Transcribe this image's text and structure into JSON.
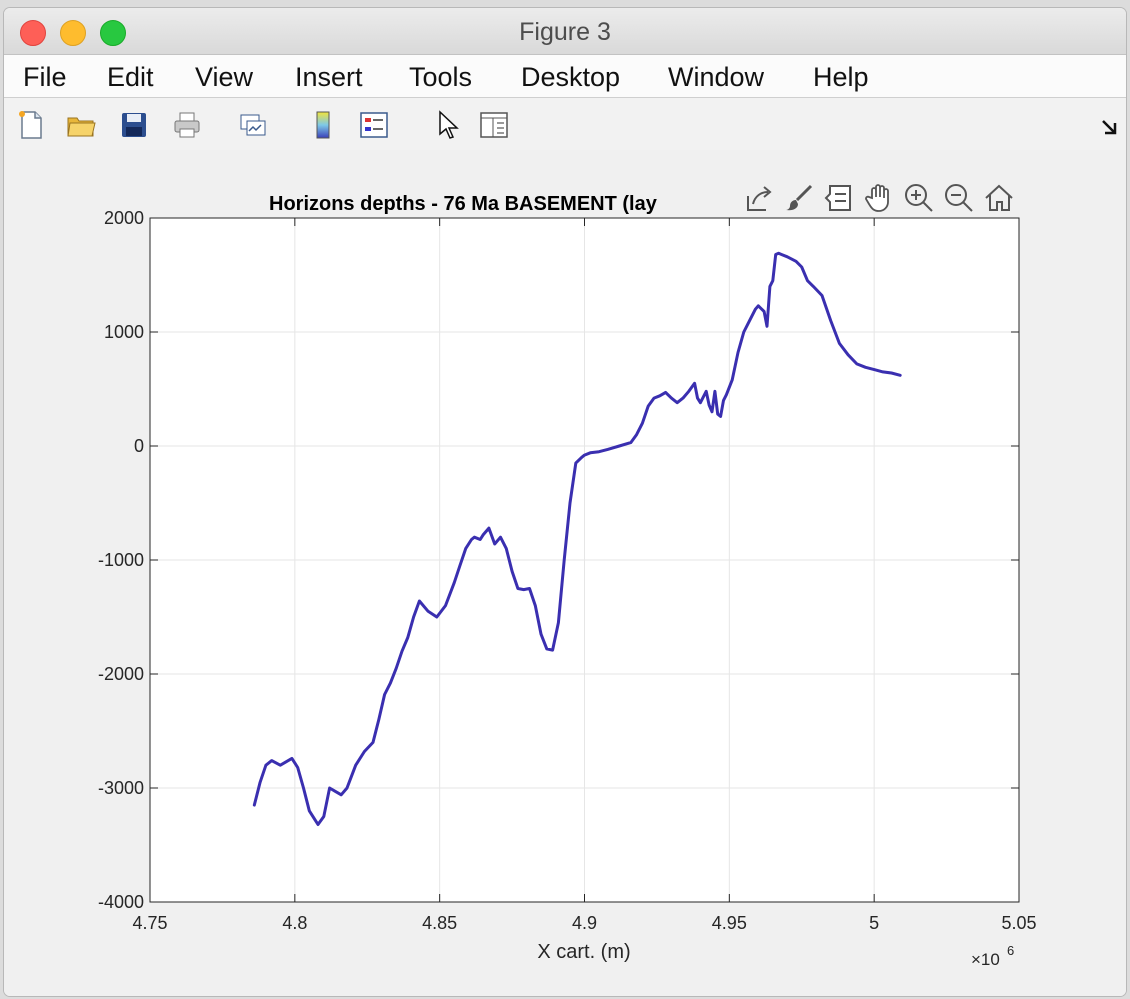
{
  "window": {
    "title": "Figure 3"
  },
  "menu": [
    "File",
    "Edit",
    "View",
    "Insert",
    "Tools",
    "Desktop",
    "Window",
    "Help"
  ],
  "toolbar": {
    "icons": [
      "new-figure-icon",
      "open-file-icon",
      "save-icon",
      "print-icon",
      "link-plot-icon",
      "colorbar-icon",
      "legend-icon",
      "pointer-icon",
      "property-inspector-icon"
    ],
    "dock_icon": "dock-arrow-icon"
  },
  "axes_toolbar": [
    "export-icon",
    "brush-icon",
    "data-tips-icon",
    "pan-hand-icon",
    "zoom-in-icon",
    "zoom-out-icon",
    "home-icon"
  ],
  "chart_data": {
    "type": "line",
    "title": "Horizons depths - 76 Ma   BASEMENT      (lay",
    "xlabel": "X cart. (m)",
    "ylabel": "",
    "x_exponent_label": "×10",
    "x_exponent": "6",
    "xlim": [
      4.75,
      5.05
    ],
    "ylim": [
      -4000,
      2000
    ],
    "xticks": [
      "4.75",
      "4.8",
      "4.85",
      "4.9",
      "4.95",
      "5",
      "5.05"
    ],
    "yticks": [
      "2000",
      "1000",
      "0",
      "-1000",
      "-2000",
      "-3000",
      "-4000"
    ],
    "grid": true,
    "line_color": "#3a2fb0",
    "series": [
      {
        "x": [
          4.786,
          4.788,
          4.79,
          4.792,
          4.795,
          4.797,
          4.799,
          4.801,
          4.803,
          4.805,
          4.807,
          4.808,
          4.81,
          4.812,
          4.814,
          4.816,
          4.818,
          4.821,
          4.824,
          4.827,
          4.829,
          4.831,
          4.833,
          4.835,
          4.837,
          4.839,
          4.841,
          4.843,
          4.846,
          4.849,
          4.852,
          4.855,
          4.857,
          4.859,
          4.861,
          4.862,
          4.864,
          4.865,
          4.867,
          4.869,
          4.871,
          4.873,
          4.875,
          4.877,
          4.879,
          4.881,
          4.883,
          4.885,
          4.887,
          4.889,
          4.891,
          4.893,
          4.895,
          4.897,
          4.899,
          4.9,
          4.902,
          4.905,
          4.908,
          4.912,
          4.916,
          4.918,
          4.92,
          4.922,
          4.924,
          4.926,
          4.928,
          4.93,
          4.932,
          4.934,
          4.936,
          4.938,
          4.939,
          4.94,
          4.942,
          4.943,
          4.944,
          4.945,
          4.946,
          4.947,
          4.948,
          4.949,
          4.951,
          4.953,
          4.955,
          4.957,
          4.959,
          4.96,
          4.962,
          4.963,
          4.964,
          4.965,
          4.966,
          4.967,
          4.968,
          4.97,
          4.973,
          4.975,
          4.977,
          4.979,
          4.982,
          4.985,
          4.988,
          4.991,
          4.994,
          4.997,
          5.0,
          5.003,
          5.006,
          5.009
        ],
        "y": [
          -3150,
          -2950,
          -2800,
          -2760,
          -2800,
          -2770,
          -2740,
          -2820,
          -3000,
          -3200,
          -3280,
          -3320,
          -3250,
          -3000,
          -3030,
          -3060,
          -3000,
          -2800,
          -2680,
          -2600,
          -2400,
          -2180,
          -2080,
          -1950,
          -1800,
          -1680,
          -1500,
          -1360,
          -1450,
          -1500,
          -1400,
          -1200,
          -1050,
          -900,
          -820,
          -800,
          -820,
          -780,
          -720,
          -860,
          -800,
          -900,
          -1100,
          -1250,
          -1260,
          -1250,
          -1400,
          -1650,
          -1780,
          -1790,
          -1550,
          -1000,
          -500,
          -150,
          -100,
          -80,
          -60,
          -50,
          -30,
          0,
          30,
          100,
          200,
          350,
          420,
          440,
          470,
          420,
          380,
          420,
          480,
          550,
          420,
          380,
          480,
          360,
          300,
          480,
          280,
          260,
          400,
          450,
          580,
          820,
          1000,
          1100,
          1200,
          1230,
          1180,
          1050,
          1400,
          1450,
          1680,
          1690,
          1680,
          1660,
          1620,
          1570,
          1450,
          1400,
          1320,
          1100,
          900,
          800,
          720,
          690,
          670,
          650,
          640,
          620
        ]
      }
    ]
  }
}
